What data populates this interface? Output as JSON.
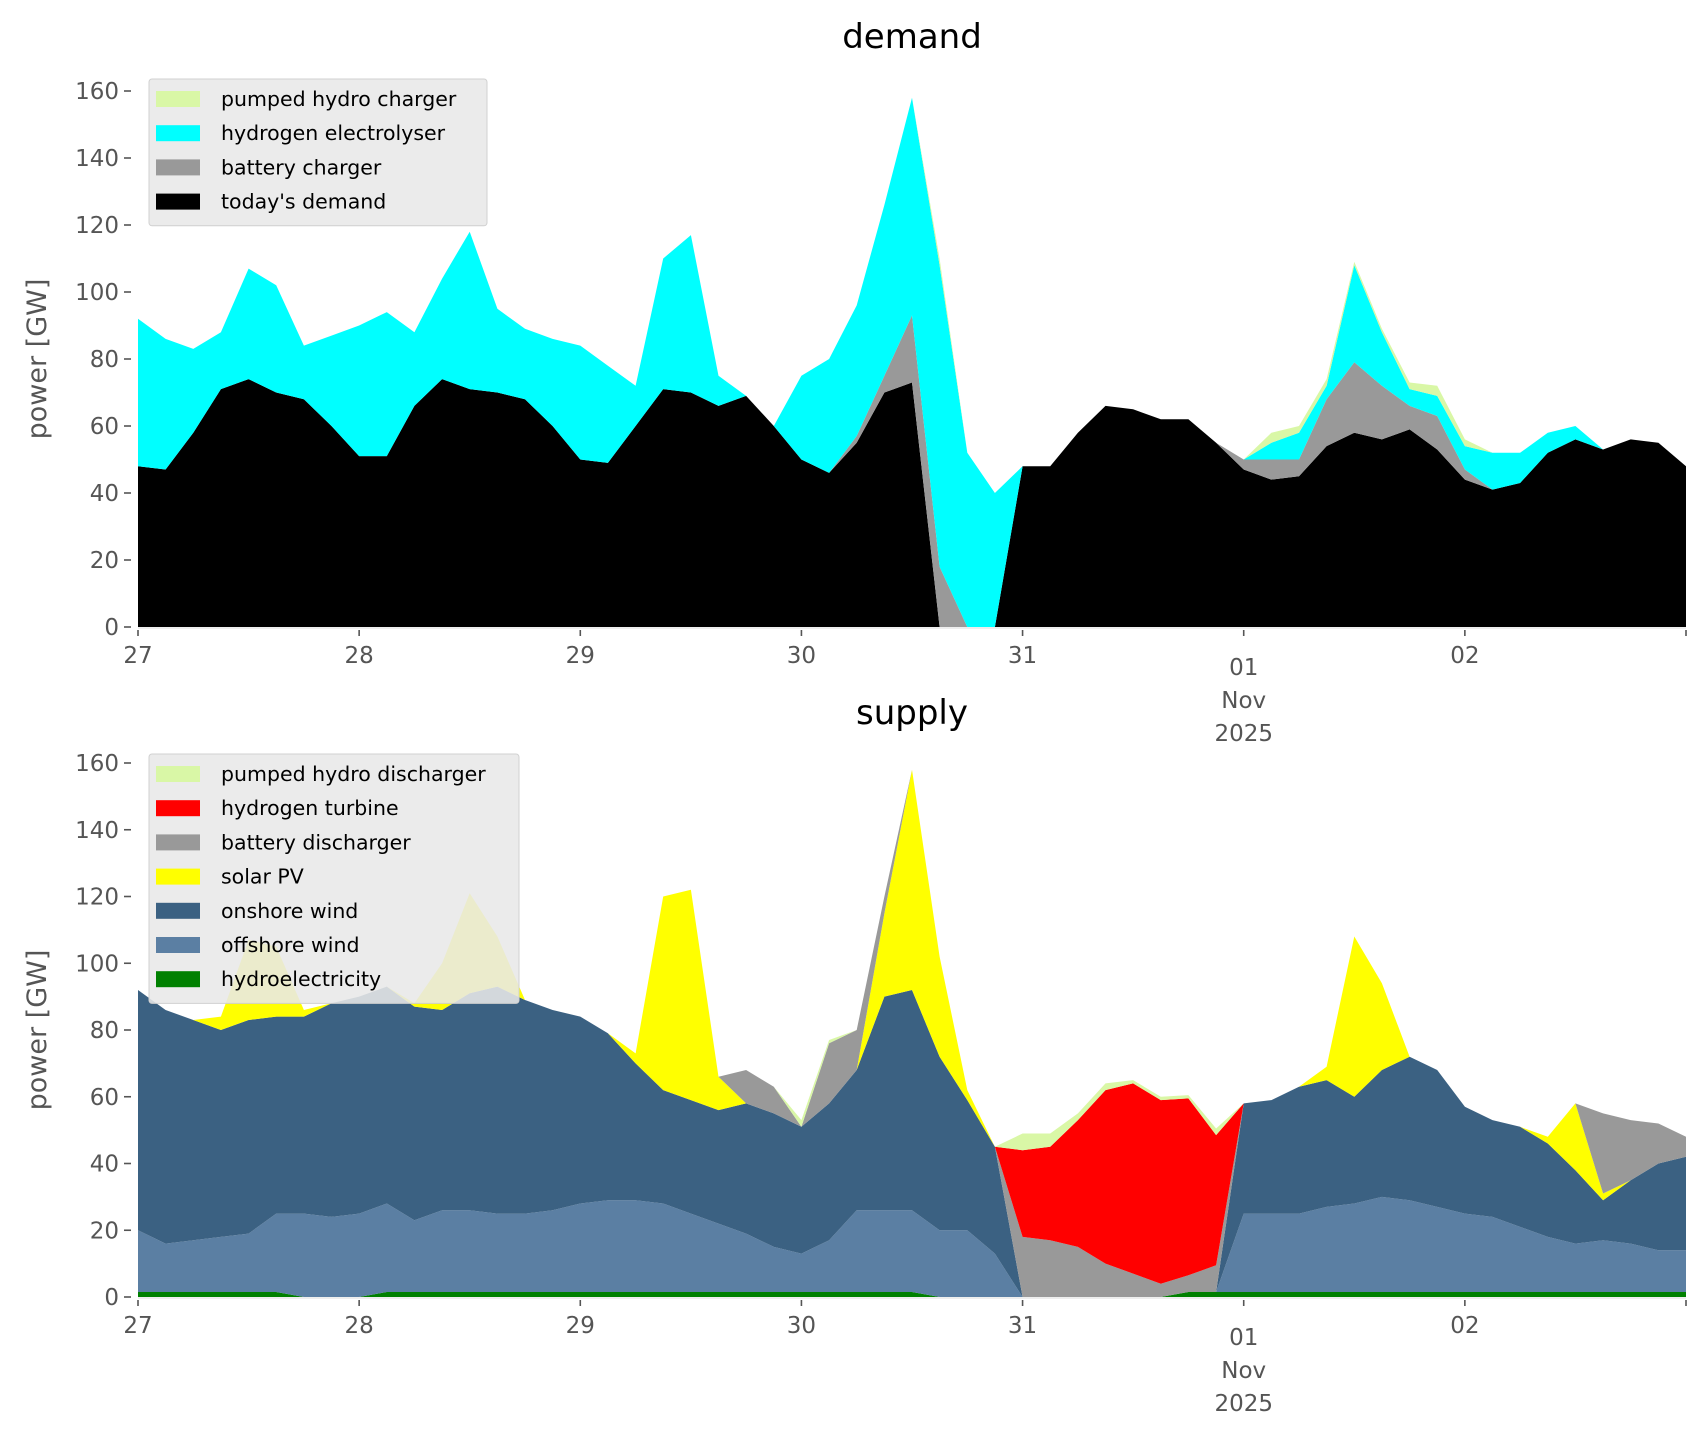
{
  "figure": {
    "demand_title": "demand",
    "supply_title": "supply",
    "ylabel": "power [GW]"
  },
  "chart_data": [
    {
      "type": "area",
      "stacked": true,
      "title": "demand",
      "xlabel": "",
      "ylabel": "power [GW]",
      "ylim": [
        0,
        160
      ],
      "yticks": [
        0,
        20,
        40,
        60,
        80,
        100,
        120,
        140,
        160
      ],
      "xlim": [
        "2025-10-27 00:00",
        "2025-11-03 00:00"
      ],
      "xtick_labels": [
        {
          "t": 0,
          "lines": [
            "27"
          ]
        },
        {
          "t": 1,
          "lines": [
            "28"
          ]
        },
        {
          "t": 2,
          "lines": [
            "29"
          ]
        },
        {
          "t": 3,
          "lines": [
            "30"
          ]
        },
        {
          "t": 4,
          "lines": [
            "31"
          ]
        },
        {
          "t": 5,
          "lines": [
            "01",
            "Nov",
            "2025"
          ]
        },
        {
          "t": 6,
          "lines": [
            "02"
          ]
        }
      ],
      "x_step_hours": 3,
      "grid": false,
      "legend_position": "top-left",
      "series": [
        {
          "name": "today's demand",
          "color": "#000000",
          "values": [
            48,
            47,
            58,
            71,
            74,
            70,
            68,
            60,
            51,
            51,
            66,
            74,
            71,
            70,
            68,
            60,
            50,
            49,
            60,
            71,
            70,
            66,
            69,
            60,
            50,
            46,
            55,
            70,
            73,
            0,
            0,
            0,
            48,
            48,
            58,
            66,
            65,
            62,
            62,
            55,
            47,
            44,
            45,
            54,
            58,
            56,
            59,
            53,
            44,
            41,
            43,
            52,
            56,
            53,
            56,
            55,
            48
          ]
        },
        {
          "name": "battery charger",
          "color": "#999999",
          "values": [
            0,
            0,
            0,
            0,
            0,
            0,
            0,
            0,
            0,
            0,
            0,
            0,
            0,
            0,
            0,
            0,
            0,
            0,
            0,
            0,
            0,
            0,
            0,
            0,
            0,
            0,
            2,
            5,
            20,
            18,
            0,
            0,
            0,
            0,
            0,
            0,
            0,
            0,
            0,
            0,
            3,
            6,
            5,
            14,
            21,
            16,
            7,
            10,
            3,
            0,
            0,
            0,
            0,
            0,
            0,
            0,
            0
          ]
        },
        {
          "name": "hydrogen electrolyser",
          "color": "#00ffff",
          "values": [
            44,
            39,
            25,
            17,
            33,
            32,
            16,
            27,
            39,
            43,
            22,
            30,
            47,
            25,
            21,
            26,
            34,
            29,
            12,
            39,
            47,
            9,
            0,
            0,
            25,
            34,
            39,
            51,
            65,
            90,
            52,
            40,
            0,
            0,
            0,
            0,
            0,
            0,
            0,
            0,
            0,
            5,
            8,
            4,
            29,
            16,
            5,
            6,
            7,
            11,
            9,
            6,
            4,
            0,
            0,
            0,
            0
          ]
        },
        {
          "name": "pumped hydro charger",
          "color": "#d9f7a6",
          "values": [
            0,
            0,
            0,
            0,
            0,
            0,
            0,
            0,
            0,
            0,
            0,
            0,
            0,
            0,
            0,
            0,
            0,
            0,
            0,
            0,
            0,
            0,
            0,
            0,
            0,
            0,
            0,
            0,
            0,
            2,
            0,
            0,
            0,
            0,
            0,
            0,
            0,
            0,
            0,
            0,
            0,
            3,
            2,
            2,
            1,
            1,
            2,
            3,
            2,
            0,
            0,
            0,
            0,
            0,
            0,
            0,
            0
          ]
        }
      ],
      "legend_order": [
        "pumped hydro charger",
        "hydrogen electrolyser",
        "battery charger",
        "today's demand"
      ]
    },
    {
      "type": "area",
      "stacked": true,
      "title": "supply",
      "xlabel": "",
      "ylabel": "power [GW]",
      "ylim": [
        0,
        160
      ],
      "yticks": [
        0,
        20,
        40,
        60,
        80,
        100,
        120,
        140,
        160
      ],
      "xlim": [
        "2025-10-27 00:00",
        "2025-11-03 00:00"
      ],
      "xtick_labels": [
        {
          "t": 0,
          "lines": [
            "27"
          ]
        },
        {
          "t": 1,
          "lines": [
            "28"
          ]
        },
        {
          "t": 2,
          "lines": [
            "29"
          ]
        },
        {
          "t": 3,
          "lines": [
            "30"
          ]
        },
        {
          "t": 4,
          "lines": [
            "31"
          ]
        },
        {
          "t": 5,
          "lines": [
            "01",
            "Nov",
            "2025"
          ]
        },
        {
          "t": 6,
          "lines": [
            "02"
          ]
        }
      ],
      "x_step_hours": 3,
      "grid": false,
      "legend_position": "top-left",
      "series": [
        {
          "name": "hydroelectricity",
          "color": "#008000",
          "values": [
            1.5,
            1.5,
            1.5,
            1.5,
            1.5,
            1.5,
            0,
            0,
            0,
            1.5,
            1.5,
            1.5,
            1.5,
            1.5,
            1.5,
            1.5,
            1.5,
            1.5,
            1.5,
            1.5,
            1.5,
            1.5,
            1.5,
            1.5,
            1.5,
            1.5,
            1.5,
            1.5,
            1.5,
            0,
            0,
            0,
            0,
            0,
            0,
            0,
            0,
            0,
            1.5,
            1.5,
            1.5,
            1.5,
            1.5,
            1.5,
            1.5,
            1.5,
            1.5,
            1.5,
            1.5,
            1.5,
            1.5,
            1.5,
            1.5,
            1.5,
            1.5,
            1.5,
            1.5
          ]
        },
        {
          "name": "offshore wind",
          "color": "#5b7fa3",
          "values": [
            18.5,
            14.5,
            15.5,
            16.5,
            17.5,
            23.5,
            25,
            24,
            25,
            26.5,
            21.5,
            24.5,
            24.5,
            23.5,
            23.5,
            24.5,
            26.5,
            27.5,
            27.5,
            26.5,
            23.5,
            20.5,
            17.5,
            13.5,
            11.5,
            15.5,
            24.5,
            24.5,
            24.5,
            20,
            20,
            13,
            0,
            0,
            0,
            0,
            0,
            0,
            0,
            0,
            23.5,
            23.5,
            23.5,
            25.5,
            26.5,
            28.5,
            27.5,
            25.5,
            23.5,
            22.5,
            19.5,
            16.5,
            14.5,
            15.5,
            14.5,
            12.5,
            12.5
          ]
        },
        {
          "name": "onshore wind",
          "color": "#3b6182",
          "values": [
            72,
            70,
            66,
            62,
            64,
            59,
            59,
            64,
            65,
            65,
            64,
            60,
            65,
            68,
            64,
            60,
            56,
            50,
            41,
            34,
            34,
            34,
            39,
            40,
            38,
            41,
            42,
            64,
            66,
            52,
            39,
            32,
            0,
            0,
            0,
            0,
            0,
            0,
            0,
            0,
            33,
            34,
            38,
            38,
            32,
            38,
            43,
            41,
            32,
            29,
            30,
            28,
            22,
            12,
            19,
            26,
            28
          ]
        },
        {
          "name": "solar PV",
          "color": "#ffff00",
          "values": [
            0,
            0,
            0,
            4,
            24,
            21,
            2,
            0,
            0,
            0,
            1,
            14,
            30,
            15,
            0,
            0,
            0,
            0,
            3,
            58,
            63,
            10,
            0,
            0,
            0,
            0,
            0,
            25,
            66,
            30,
            3,
            0,
            0,
            0,
            0,
            0,
            0,
            0,
            0,
            0,
            0,
            0,
            0,
            4,
            48,
            26,
            0,
            0,
            0,
            0,
            0,
            2,
            20,
            2,
            0,
            0,
            0
          ]
        },
        {
          "name": "battery discharger",
          "color": "#999999",
          "values": [
            0,
            0,
            0,
            0,
            0,
            0,
            0,
            0,
            0,
            0,
            0,
            0,
            0,
            0,
            0,
            0,
            0,
            0,
            0,
            0,
            0,
            0,
            10,
            8,
            0,
            18,
            12,
            5,
            0,
            0,
            0,
            0,
            18,
            17,
            15,
            10,
            7,
            4,
            5,
            8,
            0,
            0,
            0,
            0,
            0,
            0,
            0,
            0,
            0,
            0,
            0,
            0,
            0,
            24,
            18,
            12,
            6
          ]
        },
        {
          "name": "hydrogen turbine",
          "color": "#ff0000",
          "values": [
            0,
            0,
            0,
            0,
            0,
            0,
            0,
            0,
            0,
            0,
            0,
            0,
            0,
            0,
            0,
            0,
            0,
            0,
            0,
            0,
            0,
            0,
            0,
            0,
            0,
            0,
            0,
            0,
            0,
            0,
            0,
            0,
            26,
            28,
            38,
            52,
            57,
            55,
            53,
            39,
            0,
            0,
            0,
            0,
            0,
            0,
            0,
            0,
            0,
            0,
            0,
            0,
            0,
            0,
            0,
            0,
            0
          ]
        },
        {
          "name": "pumped hydro discharger",
          "color": "#d9f7a6",
          "values": [
            0,
            0,
            0,
            0,
            0,
            0,
            0,
            0,
            0,
            0,
            0,
            0,
            0,
            0,
            0,
            0,
            0,
            0,
            0,
            0,
            0,
            0,
            0,
            0,
            2,
            1,
            0,
            0,
            0,
            0,
            0,
            0,
            5,
            4,
            2,
            2,
            1,
            1,
            1,
            2,
            0,
            0,
            0,
            0,
            0,
            0,
            0,
            0,
            0,
            0,
            0,
            0,
            0,
            0,
            0,
            0,
            0
          ]
        }
      ],
      "legend_order": [
        "pumped hydro discharger",
        "hydrogen turbine",
        "battery discharger",
        "solar PV",
        "onshore wind",
        "offshore wind",
        "hydroelectricity"
      ]
    }
  ]
}
